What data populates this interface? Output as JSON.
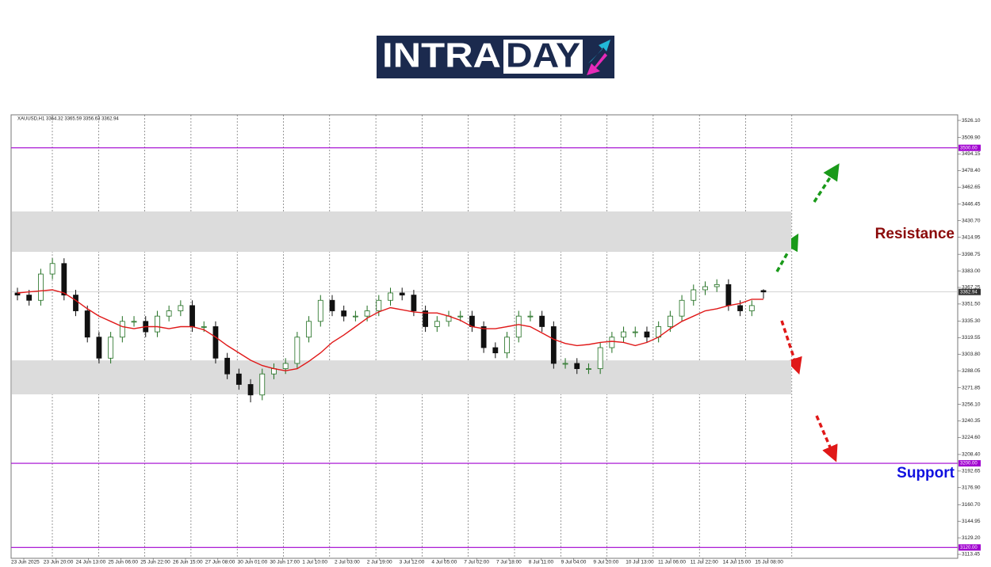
{
  "logo": {
    "left": "INTRA",
    "right": "DAY"
  },
  "chart_data": {
    "type": "candlestick",
    "header": "XAUUSD,H1 3364.32 3365.59 3356.63 3362.94",
    "x_labels": [
      "23 Jun 2025",
      "23 Jun 20:00",
      "24 Jun 13:00",
      "25 Jun 06:00",
      "25 Jun 22:00",
      "26 Jun 15:00",
      "27 Jun 08:00",
      "30 Jun 01:00",
      "30 Jun 17:00",
      "1 Jul 10:00",
      "2 Jul 03:00",
      "2 Jul 19:00",
      "3 Jul 12:00",
      "4 Jul 05:00",
      "7 Jul 02:00",
      "7 Jul 18:00",
      "8 Jul 11:00",
      "9 Jul 04:00",
      "9 Jul 20:00",
      "10 Jul 13:00",
      "11 Jul 06:00",
      "11 Jul 22:00",
      "14 Jul 15:00",
      "15 Jul 08:00"
    ],
    "open": [
      3362,
      3360,
      3355,
      3380,
      3390,
      3360,
      3345,
      3320,
      3300,
      3320,
      3335,
      3335,
      3325,
      3340,
      3345,
      3350,
      3330,
      3330,
      3300,
      3285,
      3275,
      3265,
      3285,
      3290,
      3295,
      3320,
      3335,
      3355,
      3345,
      3340,
      3340,
      3345,
      3355,
      3362,
      3360,
      3345,
      3330,
      3335,
      3340,
      3340,
      3330,
      3310,
      3305,
      3320,
      3340,
      3340,
      3330,
      3295,
      3295,
      3290,
      3290,
      3310,
      3320,
      3325,
      3325,
      3320,
      3330,
      3340,
      3355,
      3365,
      3368,
      3370,
      3350,
      3345,
      3364.32
    ],
    "high": [
      3367,
      3365,
      3385,
      3395,
      3395,
      3365,
      3350,
      3325,
      3325,
      3340,
      3340,
      3340,
      3345,
      3350,
      3355,
      3355,
      3335,
      3335,
      3305,
      3290,
      3280,
      3290,
      3295,
      3300,
      3325,
      3340,
      3360,
      3360,
      3350,
      3345,
      3350,
      3360,
      3367,
      3367,
      3365,
      3350,
      3340,
      3345,
      3345,
      3345,
      3335,
      3315,
      3325,
      3345,
      3345,
      3345,
      3335,
      3300,
      3300,
      3295,
      3315,
      3325,
      3330,
      3330,
      3330,
      3335,
      3345,
      3360,
      3370,
      3373,
      3375,
      3375,
      3355,
      3355,
      3365.59
    ],
    "low": [
      3355,
      3350,
      3350,
      3375,
      3355,
      3340,
      3315,
      3295,
      3295,
      3315,
      3330,
      3320,
      3320,
      3335,
      3340,
      3325,
      3325,
      3295,
      3280,
      3270,
      3258,
      3260,
      3280,
      3285,
      3290,
      3315,
      3330,
      3340,
      3335,
      3335,
      3335,
      3340,
      3350,
      3355,
      3340,
      3325,
      3325,
      3330,
      3335,
      3325,
      3305,
      3300,
      3300,
      3315,
      3335,
      3325,
      3290,
      3290,
      3285,
      3285,
      3285,
      3305,
      3315,
      3320,
      3315,
      3315,
      3325,
      3335,
      3350,
      3360,
      3363,
      3345,
      3340,
      3340,
      3356.63
    ],
    "close": [
      3360,
      3355,
      3380,
      3390,
      3360,
      3345,
      3320,
      3300,
      3320,
      3335,
      3335,
      3325,
      3340,
      3345,
      3350,
      3330,
      3330,
      3300,
      3285,
      3275,
      3265,
      3285,
      3290,
      3295,
      3320,
      3335,
      3355,
      3345,
      3340,
      3340,
      3345,
      3355,
      3362,
      3360,
      3345,
      3330,
      3335,
      3340,
      3340,
      3330,
      3310,
      3305,
      3320,
      3340,
      3340,
      3330,
      3295,
      3295,
      3290,
      3290,
      3310,
      3320,
      3325,
      3325,
      3320,
      3330,
      3340,
      3355,
      3365,
      3368,
      3370,
      3350,
      3345,
      3350,
      3362.94
    ],
    "up_color": "#1f6e1f",
    "down_color": "#111111",
    "ma": {
      "color": "#e01818",
      "values": [
        3362,
        3363,
        3364,
        3365,
        3362,
        3355,
        3347,
        3340,
        3335,
        3330,
        3328,
        3330,
        3330,
        3328,
        3330,
        3330,
        3327,
        3320,
        3312,
        3305,
        3298,
        3293,
        3290,
        3288,
        3290,
        3297,
        3305,
        3315,
        3322,
        3330,
        3338,
        3344,
        3348,
        3346,
        3344,
        3343,
        3343,
        3340,
        3336,
        3330,
        3328,
        3328,
        3330,
        3332,
        3330,
        3324,
        3318,
        3314,
        3312,
        3313,
        3315,
        3316,
        3315,
        3312,
        3315,
        3320,
        3328,
        3335,
        3340,
        3345,
        3347,
        3350,
        3352,
        3356,
        3356
      ]
    },
    "ylim": [
      3109.7,
      3531.4
    ],
    "yticks": [
      {
        "value": 3526.1,
        "label": "3526.10"
      },
      {
        "value": 3509.9,
        "label": "3509.90"
      },
      3494.15,
      {
        "value": 3478.4,
        "label": "3478.40"
      },
      3462.65,
      3446.45,
      {
        "value": 3430.7,
        "label": "3430.70"
      },
      3414.95,
      3398.75,
      {
        "value": 3383,
        "label": "3383.00"
      },
      3367.25,
      {
        "value": 3351.5,
        "label": "3351.50"
      },
      {
        "value": 3335.3,
        "label": "3335.30"
      },
      3319.55,
      {
        "value": 3303.8,
        "label": "3303.80"
      },
      3288.05,
      3271.85,
      {
        "value": 3256.1,
        "label": "3256.10"
      },
      3240.35,
      {
        "value": 3224.6,
        "label": "3224.60"
      },
      {
        "value": 3208.4,
        "label": "3208.40"
      },
      3192.65,
      {
        "value": 3176.9,
        "label": "3176.90"
      },
      {
        "value": 3160.7,
        "label": "3160.70"
      },
      3144.95,
      {
        "value": 3129.2,
        "label": "3129.20"
      },
      3113.45
    ],
    "levels": [
      {
        "value": 3500,
        "label": "3500.00"
      },
      {
        "value": 3200,
        "label": "3200.00"
      },
      {
        "value": 3120,
        "label": "3120.00"
      }
    ],
    "level_color": "#a100d0",
    "last_price": {
      "value": 3362.94,
      "label": "3362.94"
    },
    "zones": [
      {
        "from": 3401.1,
        "to": 3439.5
      },
      {
        "from": 3265.6,
        "to": 3297.9
      }
    ],
    "zone_color": "#dcdcdc",
    "annotations": [
      {
        "text": "Resistance",
        "color": "#8b0a0a"
      },
      {
        "text": "Support",
        "color": "#1010e0"
      }
    ]
  }
}
